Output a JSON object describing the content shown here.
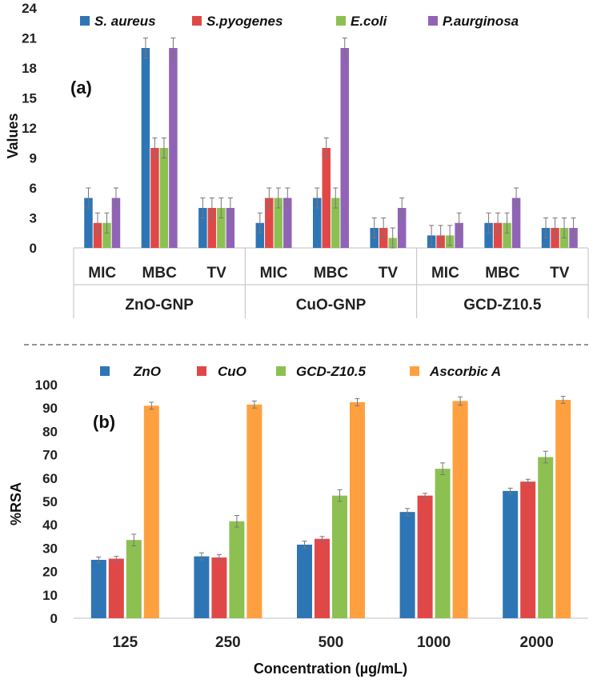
{
  "chart_data": [
    {
      "type": "bar",
      "panel_label": "(a)",
      "ylabel": "Values",
      "ylim": [
        0,
        24
      ],
      "yticks": [
        "0",
        "3",
        "6",
        "9",
        "12",
        "15",
        "18",
        "21",
        "24"
      ],
      "groups": [
        "ZnO-GNP",
        "CuO-GNP",
        "GCD-Z10.5"
      ],
      "categories": [
        "MIC",
        "MBC",
        "TV"
      ],
      "series": [
        {
          "name": "S. aureus",
          "color": "#2e75b6",
          "values": [
            [
              5,
              20,
              4
            ],
            [
              2.5,
              5,
              2
            ],
            [
              1.25,
              2.5,
              2
            ]
          ]
        },
        {
          "name": "S.pyogenes",
          "color": "#e04848",
          "values": [
            [
              2.5,
              10,
              4
            ],
            [
              5,
              10,
              2
            ],
            [
              1.25,
              2.5,
              2
            ]
          ]
        },
        {
          "name": "E.coli",
          "color": "#8cc152",
          "values": [
            [
              2.5,
              10,
              4
            ],
            [
              5,
              5,
              1
            ],
            [
              1.25,
              2.5,
              2
            ]
          ]
        },
        {
          "name": "P.aurginosa",
          "color": "#9163b6",
          "values": [
            [
              5,
              20,
              4
            ],
            [
              5,
              20,
              4
            ],
            [
              2.5,
              5,
              2
            ]
          ]
        }
      ],
      "error_bar": 1
    },
    {
      "type": "bar",
      "panel_label": "(b)",
      "ylabel": "%RSA",
      "xlabel": "Concentration (µg/mL)",
      "ylim": [
        0,
        100
      ],
      "yticks": [
        "0",
        "10",
        "20",
        "30",
        "40",
        "50",
        "60",
        "70",
        "80",
        "90",
        "100"
      ],
      "categories": [
        "125",
        "250",
        "500",
        "1000",
        "2000"
      ],
      "series": [
        {
          "name": "ZnO",
          "color": "#2e75b6",
          "values": [
            25,
            26.5,
            31.5,
            45.5,
            54.5
          ],
          "errors": [
            1.2,
            1.5,
            1.5,
            1.5,
            1.2
          ]
        },
        {
          "name": "CuO",
          "color": "#e04848",
          "values": [
            25.5,
            26,
            34,
            52.5,
            58.5
          ],
          "errors": [
            1,
            1.2,
            1,
            1,
            1
          ]
        },
        {
          "name": "GCD-Z10.5",
          "color": "#8cc152",
          "values": [
            33.5,
            41.5,
            52.5,
            64,
            69
          ],
          "errors": [
            2.5,
            2.5,
            2.5,
            2.5,
            2.5
          ]
        },
        {
          "name": "Ascorbic A",
          "color": "#ffa040",
          "values": [
            91,
            91.5,
            92.5,
            93,
            93.5
          ],
          "errors": [
            1.5,
            1.5,
            1.5,
            1.8,
            1.5
          ]
        }
      ]
    }
  ]
}
